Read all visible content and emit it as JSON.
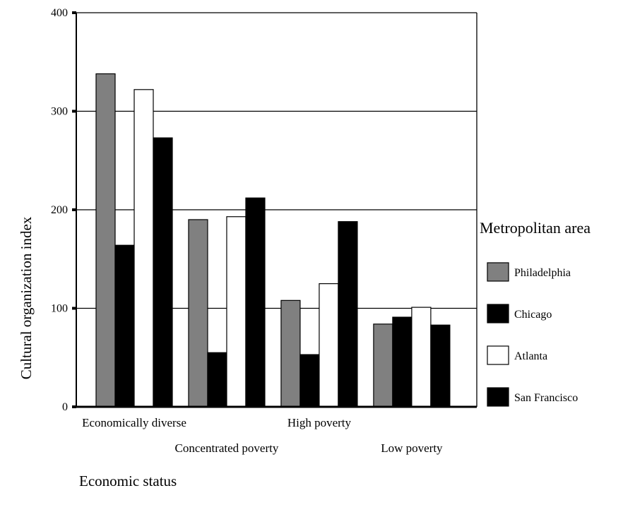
{
  "chart_data": {
    "type": "bar",
    "title": "",
    "xlabel": "Economic status",
    "ylabel": "Cultural organization index",
    "ylim": [
      0,
      400
    ],
    "yticks": [
      0,
      100,
      200,
      300,
      400
    ],
    "grid": true,
    "legend_title": "Metropolitan area",
    "legend_position": "right",
    "categories": [
      "Economically diverse",
      "Concentrated poverty",
      "High poverty",
      "Low poverty"
    ],
    "series": [
      {
        "name": "Philadelphia",
        "color": "#808080",
        "values": [
          338,
          190,
          108,
          84
        ]
      },
      {
        "name": "Chicago",
        "color": "#000000",
        "values": [
          164,
          55,
          53,
          91
        ]
      },
      {
        "name": "Atlanta",
        "color": "#ffffff",
        "values": [
          322,
          193,
          125,
          101
        ]
      },
      {
        "name": "San Francisco",
        "color": "#000000",
        "values": [
          273,
          212,
          188,
          83
        ]
      }
    ]
  }
}
